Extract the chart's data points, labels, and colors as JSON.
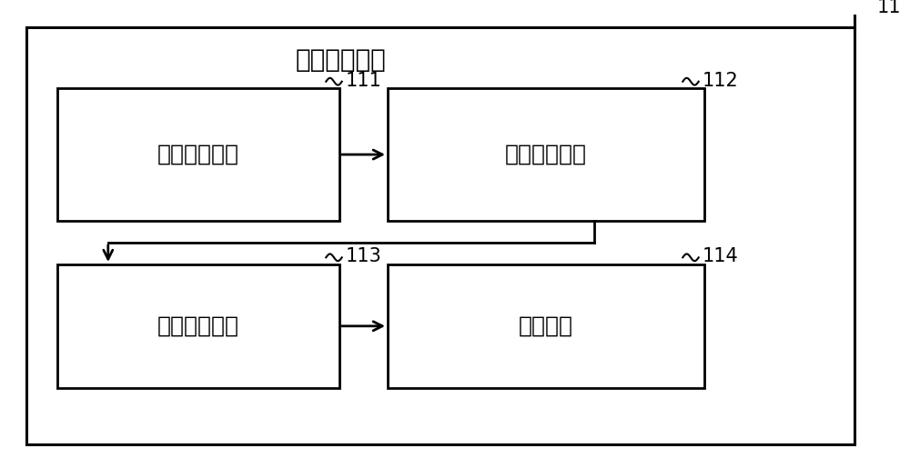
{
  "title": "扩展数据模块",
  "ref_main": "11",
  "boxes": [
    {
      "label": "功能数据模块",
      "ref": "111",
      "row": 0,
      "col": 0
    },
    {
      "label": "数据提取模块",
      "ref": "112",
      "row": 0,
      "col": 1
    },
    {
      "label": "触发信号模块",
      "ref": "113",
      "row": 1,
      "col": 0
    },
    {
      "label": "选项模块",
      "ref": "114",
      "row": 1,
      "col": 1
    }
  ],
  "font_color": "#000000",
  "box_color": "#000000",
  "bg_color": "#ffffff",
  "label_fontsize": 18,
  "title_fontsize": 20,
  "ref_fontsize": 15
}
